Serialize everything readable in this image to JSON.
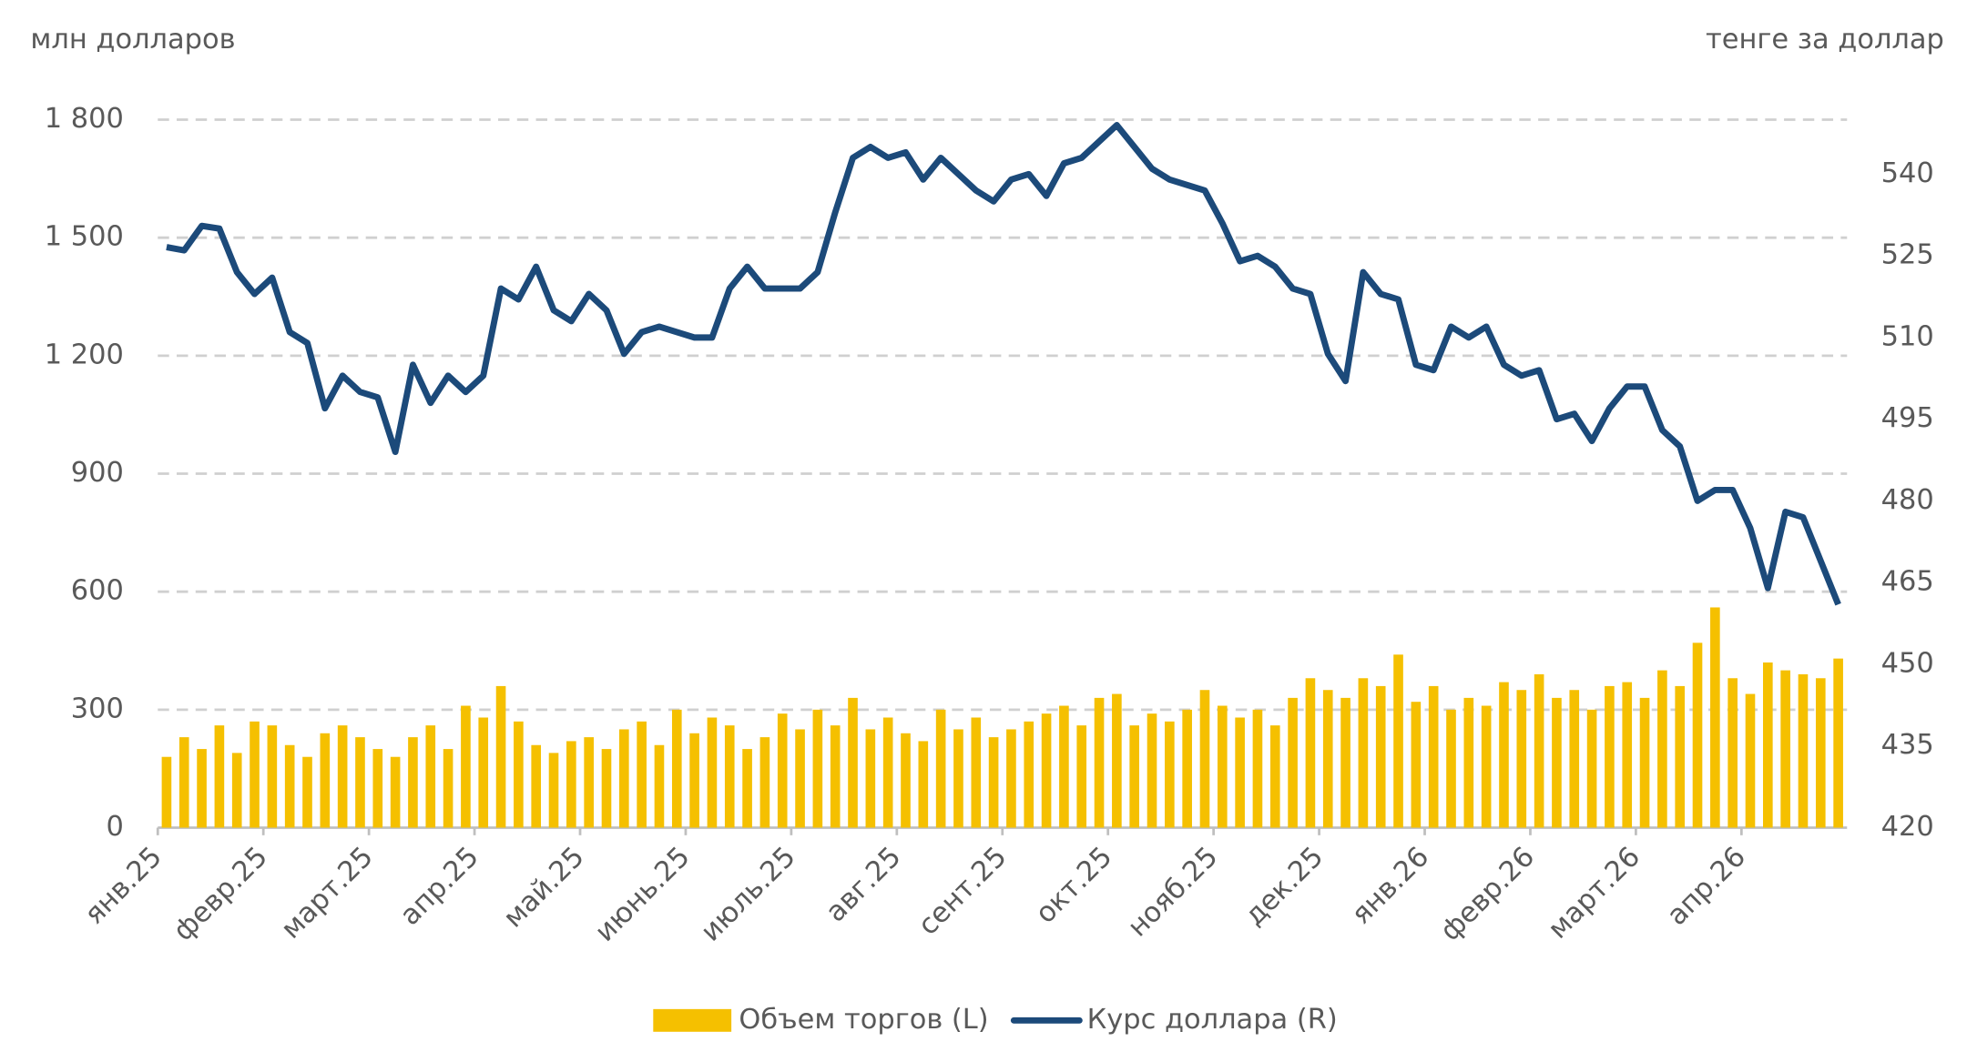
{
  "chart_data": {
    "type": "combo",
    "y_label": "млн долларов",
    "y2_label": "тенге за доллар",
    "categories": [
      "янв.25",
      null,
      null,
      null,
      null,
      null,
      "февр.25",
      null,
      null,
      null,
      null,
      null,
      "март.25",
      null,
      null,
      null,
      null,
      null,
      "апр.25",
      null,
      null,
      null,
      null,
      null,
      "май.25",
      null,
      null,
      null,
      null,
      null,
      "июнь.25",
      null,
      null,
      null,
      null,
      null,
      "июль.25",
      null,
      null,
      null,
      null,
      null,
      "авг.25",
      null,
      null,
      null,
      null,
      null,
      "сент.25",
      null,
      null,
      null,
      null,
      null,
      "окт.25",
      null,
      null,
      null,
      null,
      null,
      "нояб.25",
      null,
      null,
      null,
      null,
      null,
      "дек.25",
      null,
      null,
      null,
      null,
      null,
      "янв.26",
      null,
      null,
      null,
      null,
      null,
      "февр.26",
      null,
      null,
      null,
      null,
      null,
      "март.26",
      null,
      null,
      null,
      null,
      null,
      "апр.26",
      null,
      null,
      null,
      null,
      null
    ],
    "series": [
      {
        "name": "Объем торгов (L)",
        "type": "bar",
        "color": "#f5c000",
        "values": [
          180,
          230,
          200,
          260,
          190,
          270,
          260,
          210,
          180,
          240,
          260,
          230,
          200,
          180,
          230,
          260,
          200,
          310,
          280,
          360,
          270,
          210,
          190,
          220,
          230,
          200,
          250,
          270,
          210,
          300,
          240,
          280,
          260,
          200,
          230,
          290,
          250,
          300,
          260,
          330,
          250,
          280,
          240,
          220,
          300,
          250,
          280,
          230,
          250,
          270,
          290,
          310,
          260,
          330,
          340,
          260,
          290,
          270,
          300,
          350,
          310,
          280,
          300,
          260,
          330,
          380,
          350,
          330,
          380,
          360,
          440,
          320,
          360,
          300,
          330,
          310,
          370,
          350,
          390,
          330,
          350,
          300,
          360,
          370,
          330,
          400,
          360,
          470,
          560,
          380,
          340,
          420,
          400,
          390,
          380,
          430
        ]
      },
      {
        "name": "Курс доллара (R)",
        "type": "line",
        "axis": "y2",
        "color": "#1c4a7a",
        "values": [
          526.6,
          526,
          530.5,
          530,
          522,
          518,
          521,
          511,
          509,
          497,
          503,
          500,
          499,
          489,
          505,
          498,
          503,
          500,
          503,
          519,
          517,
          523,
          515,
          513,
          518,
          515,
          507,
          511,
          512,
          511,
          510,
          510,
          519,
          523,
          519,
          519,
          519,
          522,
          533,
          543,
          545,
          543,
          544,
          539,
          543,
          540,
          537,
          535,
          539,
          540,
          536,
          542,
          543,
          546,
          549,
          545,
          541,
          539,
          538,
          537,
          531,
          524,
          525,
          523,
          519,
          518,
          507,
          502,
          522,
          518,
          517,
          505,
          504,
          512,
          510,
          512,
          505,
          503,
          504,
          495,
          496,
          491,
          497,
          501,
          501,
          493,
          490,
          480,
          482,
          482,
          475,
          464,
          478,
          477,
          469,
          461
        ]
      }
    ],
    "ylim": [
      0,
      1800
    ],
    "yticks": [
      0,
      300,
      600,
      900,
      {
        "value": 1200,
        "label": "1 200"
      },
      {
        "value": 1500,
        "label": "1 500"
      },
      {
        "value": 1800,
        "label": "1 800"
      }
    ],
    "y2lim": [
      420,
      550
    ],
    "y2ticks": [
      420,
      435,
      450,
      465,
      480,
      495,
      510,
      525,
      540
    ],
    "grid": true,
    "legend": "bottom"
  }
}
